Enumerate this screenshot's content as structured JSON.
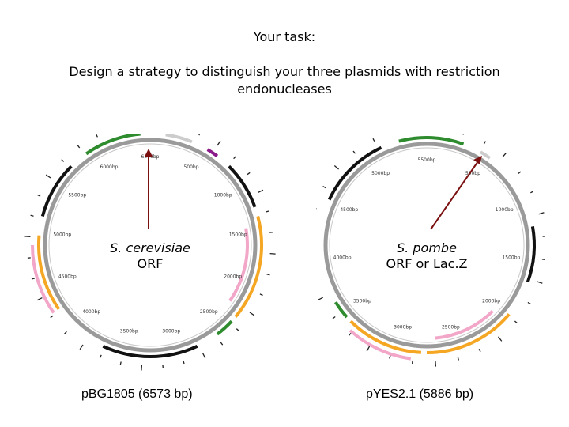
{
  "slide": {
    "title": "Your task:",
    "body": "Design a strategy to distinguish your three plasmids with restriction endonucleases"
  },
  "maps": {
    "left": {
      "plasmid": "pBG1805 (6573 bp)",
      "insert_label_line1": "S. cerevisiae",
      "insert_label_line2": "ORF",
      "ticks": [
        "6500bp",
        "500bp",
        "1000bp",
        "1500bp",
        "2000bp",
        "2500bp",
        "3000bp",
        "3500bp",
        "4000bp",
        "4500bp",
        "5000bp",
        "5500bp",
        "6000bp"
      ]
    },
    "right": {
      "plasmid": "pYES2.1 (5886 bp)",
      "insert_label_line1": "S. pombe",
      "insert_label_line2": "ORF or Lac.Z",
      "ticks": [
        "5500bp",
        "500bp",
        "1000bp",
        "1500bp",
        "2000bp",
        "2500bp",
        "3000bp",
        "3500bp",
        "4000bp",
        "4500bp",
        "5000bp"
      ]
    }
  },
  "colors": {
    "backbone": "#9a9a9a",
    "green": "#2e8b2e",
    "pink": "#f2a6c8",
    "orange": "#f5a623",
    "black": "#111111",
    "purple": "#8b1a8b",
    "arrow": "#7a1010"
  }
}
